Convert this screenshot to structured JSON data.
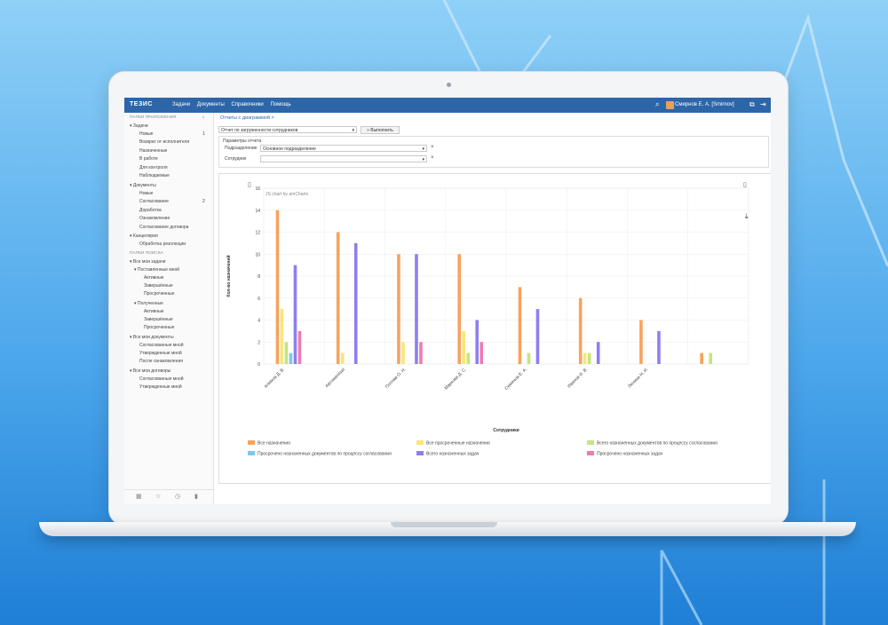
{
  "app": {
    "logo": "ТЕЗИС",
    "menu": [
      "Задачи",
      "Документы",
      "Справочники",
      "Помощь"
    ],
    "user": "Смирнов Е. А. [Smirnov]"
  },
  "sidebar": {
    "section_app": "ПАПКИ ПРИЛОЖЕНИЯ",
    "collapse_glyph": "‹",
    "tasks": "Задачи",
    "task_items": [
      {
        "label": "Новые",
        "count": "1"
      },
      {
        "label": "Возврат от исполнителя",
        "count": ""
      },
      {
        "label": "Назначенные",
        "count": ""
      },
      {
        "label": "В работе",
        "count": ""
      },
      {
        "label": "Для контроля",
        "count": ""
      },
      {
        "label": "Наблюдаемые",
        "count": ""
      }
    ],
    "docs": "Документы",
    "doc_items": [
      {
        "label": "Новые",
        "count": ""
      },
      {
        "label": "Согласование",
        "count": "2"
      },
      {
        "label": "Доработка",
        "count": ""
      },
      {
        "label": "Ознакомление",
        "count": ""
      },
      {
        "label": "Согласование договора",
        "count": ""
      }
    ],
    "office": "Канцелярия",
    "office_items": [
      "Обработка резолюции"
    ],
    "section_search": "ПАПКИ ПОИСКА",
    "all_tasks": "Все мои задачи",
    "set_by_me": "Поставленные мной",
    "set_items": [
      "Активные",
      "Завершённые",
      "Просроченные"
    ],
    "received": "Полученные",
    "recv_items": [
      "Активные",
      "Завершённые",
      "Просроченные"
    ],
    "all_docs": "Все мои документы",
    "all_docs_items": [
      "Согласованные мной",
      "Утвержденные мной",
      "После ознакомления"
    ],
    "all_contracts": "Все мои договоры",
    "contract_items": [
      "Согласованные мной",
      "Утвержденные мной"
    ]
  },
  "main": {
    "tab": "Отчеты с диаграммой",
    "tab_close": "×",
    "report_select": "Отчет по загруженности сотрудников",
    "run_button": "Выполнить",
    "params_title": "Параметры отчета",
    "dept_label": "Подразделение",
    "dept_value": "Основное подразделение",
    "emp_label": "Сотрудник",
    "emp_value": "",
    "chart_credit": "JS chart by amCharts"
  },
  "chart_data": {
    "type": "bar",
    "categories": [
      "Климов Д. В.",
      "Автоматизат",
      "Попова О. Н.",
      "Маркова Д. С.",
      "Семенов Е. А.",
      "Иванов И. В.",
      "Ленина Н. И.",
      ""
    ],
    "series": [
      {
        "name": "Все назначения",
        "color": "#f7a35c",
        "values": [
          14,
          12,
          10,
          10,
          7,
          6,
          4,
          1
        ]
      },
      {
        "name": "Все просроченные назначения",
        "color": "#f9e57a",
        "values": [
          5,
          1,
          2,
          3,
          0,
          1,
          0,
          0
        ]
      },
      {
        "name": "Всего назначенных документов по процессу согласования",
        "color": "#c5e67c",
        "values": [
          2,
          0,
          0,
          1,
          1,
          1,
          0,
          1
        ]
      },
      {
        "name": "Просрочено назначенных документов по процессу согласования",
        "color": "#7cc7ef",
        "values": [
          1,
          0,
          0,
          0,
          0,
          0,
          0,
          0
        ]
      },
      {
        "name": "Всего назначенных задач",
        "color": "#8f7ef0",
        "values": [
          9,
          11,
          10,
          4,
          5,
          2,
          3,
          0
        ]
      },
      {
        "name": "Просрочено назначенных задач",
        "color": "#f07bb0",
        "values": [
          3,
          0,
          2,
          2,
          0,
          0,
          0,
          0
        ]
      }
    ],
    "xlabel": "Сотрудники",
    "ylabel": "Кол-во назначений",
    "ylim": [
      0,
      16
    ],
    "yticks": [
      0,
      2,
      4,
      6,
      8,
      10,
      12,
      14,
      16
    ],
    "legend_position": "bottom",
    "grid": true
  }
}
